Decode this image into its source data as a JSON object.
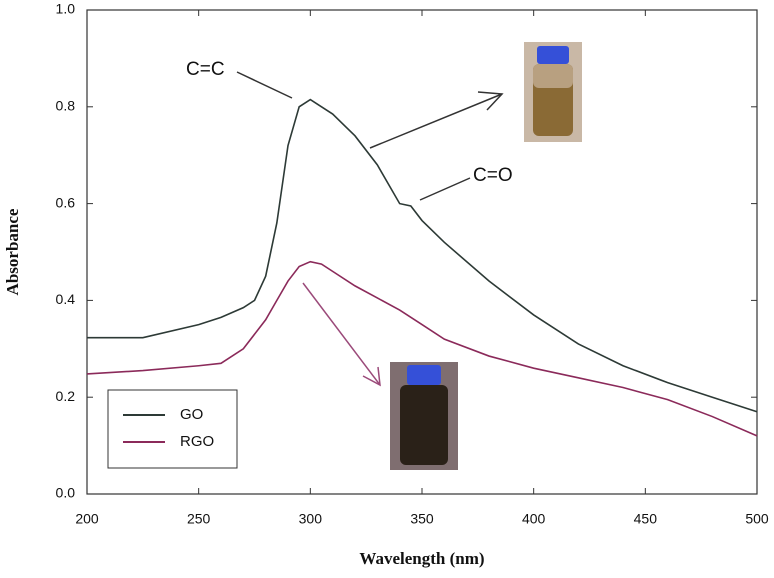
{
  "chart_data": {
    "type": "line",
    "x_label": "Wavelength (nm)",
    "y_label": "Absorbance",
    "x": [
      200,
      225,
      250,
      260,
      270,
      275,
      280,
      285,
      290,
      295,
      300,
      305,
      310,
      320,
      330,
      340,
      345,
      350,
      360,
      380,
      400,
      420,
      440,
      460,
      480,
      500
    ],
    "series": [
      {
        "name": "GO",
        "color": "#2d3a36",
        "values": [
          0.323,
          0.323,
          0.35,
          0.365,
          0.385,
          0.4,
          0.45,
          0.56,
          0.72,
          0.8,
          0.815,
          0.8,
          0.785,
          0.74,
          0.68,
          0.6,
          0.595,
          0.565,
          0.52,
          0.44,
          0.37,
          0.31,
          0.265,
          0.23,
          0.2,
          0.17
        ]
      },
      {
        "name": "RGO",
        "color": "#8b2a5a",
        "values": [
          0.248,
          0.255,
          0.265,
          0.27,
          0.3,
          0.33,
          0.36,
          0.4,
          0.44,
          0.47,
          0.48,
          0.475,
          0.46,
          0.43,
          0.405,
          0.38,
          0.365,
          0.35,
          0.32,
          0.285,
          0.26,
          0.24,
          0.22,
          0.195,
          0.16,
          0.12
        ]
      }
    ],
    "xlim": [
      200,
      500
    ],
    "xticks": [
      200,
      250,
      300,
      350,
      400,
      450,
      500
    ],
    "ylim": [
      0,
      1.0
    ],
    "yticks": [
      {
        "value": 0,
        "label": "0.0"
      },
      0.2,
      0.4,
      0.6,
      0.8,
      {
        "value": 1.0,
        "label": "1.0"
      }
    ],
    "annotations": [
      "C=C",
      "C=O"
    ],
    "legend": "lower-left"
  }
}
